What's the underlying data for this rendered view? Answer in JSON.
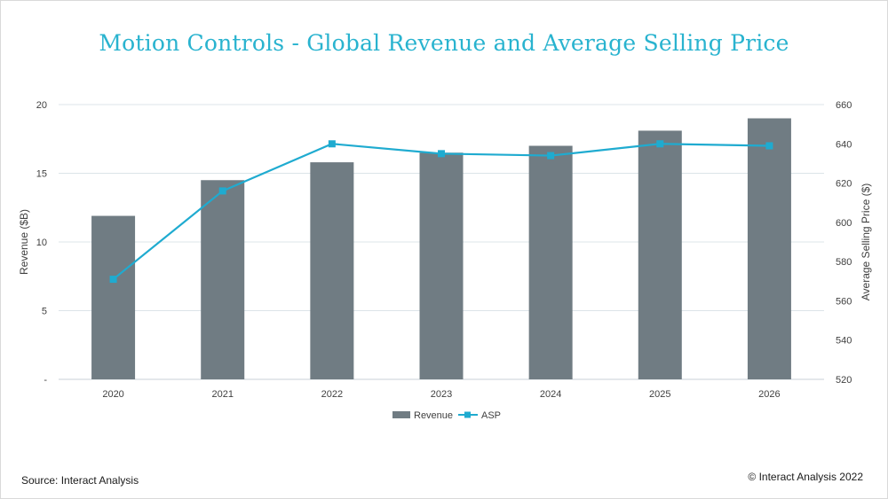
{
  "chart_data": {
    "type": "bar+line",
    "title": "Motion Controls - Global Revenue and Average Selling Price",
    "categories": [
      "2020",
      "2021",
      "2022",
      "2023",
      "2024",
      "2025",
      "2026"
    ],
    "series": [
      {
        "name": "Revenue",
        "type": "bar",
        "axis": "left",
        "values": [
          11.9,
          14.5,
          15.8,
          16.5,
          17.0,
          18.1,
          19.0
        ]
      },
      {
        "name": "ASP",
        "type": "line",
        "axis": "right",
        "values": [
          571,
          616,
          640,
          635,
          634,
          640,
          639
        ]
      }
    ],
    "ylabel_left": "Revenue ($B)",
    "ylim_left": [
      0,
      20
    ],
    "yticks_left": [
      "-",
      "5",
      "10",
      "15",
      "20"
    ],
    "ylabel_right": "Average Selling Price ($)",
    "ylim_right": [
      520,
      660
    ],
    "yticks_right": [
      "520",
      "540",
      "560",
      "580",
      "600",
      "620",
      "640",
      "660"
    ],
    "grid": true,
    "legend_position": "bottom-center",
    "colors": {
      "bar": "#707c83",
      "line": "#1fabd0",
      "title": "#29b3cf",
      "grid": "#dce4e8"
    }
  },
  "footer": {
    "source": "Source: Interact Analysis",
    "copyright": "© Interact Analysis 2022"
  }
}
